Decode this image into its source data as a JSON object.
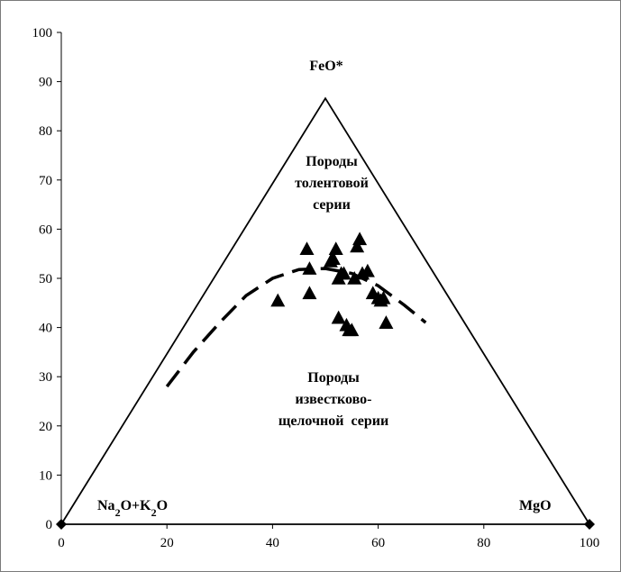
{
  "chart_data": {
    "type": "scatter",
    "title": "",
    "xlabel": "",
    "ylabel": "",
    "xlim": [
      0,
      100
    ],
    "ylim": [
      0,
      100
    ],
    "x_ticks": [
      "0",
      "20",
      "40",
      "60",
      "80",
      "100"
    ],
    "y_ticks": [
      "0",
      "10",
      "20",
      "30",
      "40",
      "50",
      "60",
      "70",
      "80",
      "90",
      "100"
    ],
    "grid": false,
    "triangle": {
      "vertices": [
        [
          0,
          0
        ],
        [
          50,
          86.6
        ],
        [
          100,
          0
        ]
      ],
      "apex_labels": {
        "top": "FeO*",
        "left_parts": [
          {
            "text": "Na",
            "sub": false
          },
          {
            "text": "2",
            "sub": true
          },
          {
            "text": "O+K",
            "sub": false
          },
          {
            "text": "2",
            "sub": true
          },
          {
            "text": "O",
            "sub": false
          }
        ],
        "right": "MgO"
      }
    },
    "region_labels": {
      "tholeiitic": [
        "Породы",
        "толентовой",
        "серии"
      ],
      "calc_alkaline": [
        "Породы",
        "известково-",
        "щелочной  серии"
      ]
    },
    "boundary_curve": {
      "style": "dashed",
      "points": [
        [
          20,
          28
        ],
        [
          25,
          35
        ],
        [
          30,
          41
        ],
        [
          35,
          46.5
        ],
        [
          40,
          50
        ],
        [
          45,
          51.8
        ],
        [
          50,
          52
        ],
        [
          55,
          51
        ],
        [
          60,
          48.5
        ],
        [
          65,
          44.5
        ],
        [
          69,
          41
        ]
      ]
    },
    "series": [
      {
        "marker": "triangle",
        "values": [
          [
            41,
            45.5
          ],
          [
            46.5,
            56
          ],
          [
            47,
            52
          ],
          [
            47,
            47
          ],
          [
            51,
            53.5
          ],
          [
            51.5,
            54
          ],
          [
            52,
            56
          ],
          [
            52.5,
            50
          ],
          [
            53,
            51
          ],
          [
            52.5,
            42
          ],
          [
            53.5,
            51
          ],
          [
            54,
            40.5
          ],
          [
            54.5,
            39.5
          ],
          [
            55,
            39.5
          ],
          [
            55.5,
            50
          ],
          [
            56,
            56.5
          ],
          [
            56.5,
            58
          ],
          [
            57,
            51
          ],
          [
            58,
            51.5
          ],
          [
            59,
            47
          ],
          [
            60,
            46
          ],
          [
            60.5,
            45.5
          ],
          [
            61,
            46
          ],
          [
            61.5,
            41
          ]
        ]
      }
    ],
    "axis_end_markers": [
      [
        0,
        0
      ],
      [
        100,
        0
      ]
    ]
  }
}
